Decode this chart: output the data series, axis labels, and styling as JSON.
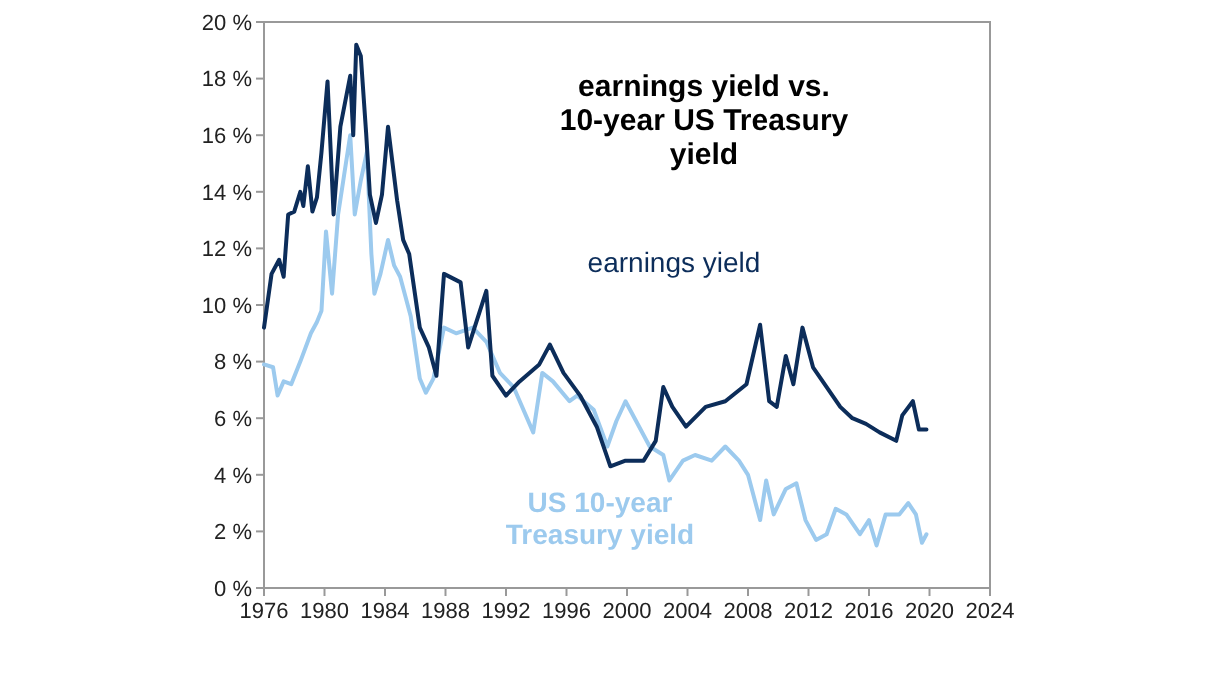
{
  "chart_data": {
    "type": "line",
    "title": "earnings yield vs. 10-year US Treasury yield",
    "xlim": [
      1976,
      2024
    ],
    "xticks": [
      1976,
      1980,
      1984,
      1988,
      1992,
      1996,
      2000,
      2004,
      2008,
      2012,
      2016,
      2020,
      2024
    ],
    "ylim": [
      0,
      20
    ],
    "yticks": [
      {
        "value": 0,
        "label": "0 %"
      },
      {
        "value": 2,
        "label": "2 %"
      },
      {
        "value": 4,
        "label": "4 %"
      },
      {
        "value": 6,
        "label": "6 %"
      },
      {
        "value": 8,
        "label": "8 %"
      },
      {
        "value": 10,
        "label": "10 %"
      },
      {
        "value": 12,
        "label": "12 %"
      },
      {
        "value": 14,
        "label": "14 %"
      },
      {
        "value": 16,
        "label": "16 %"
      },
      {
        "value": 18,
        "label": "18 %"
      },
      {
        "value": 20,
        "label": "20 %"
      }
    ],
    "grid": false,
    "marker": "none",
    "line_style": "solid",
    "series": [
      {
        "name": "US 10-year Treasury yield",
        "color": "#9ccaee",
        "x": [
          1976.0,
          1976.6,
          1976.9,
          1977.3,
          1977.8,
          1978.4,
          1979.1,
          1979.5,
          1979.8,
          1980.1,
          1980.5,
          1980.9,
          1981.3,
          1981.7,
          1982.0,
          1982.4,
          1982.8,
          1983.1,
          1983.3,
          1983.7,
          1984.2,
          1984.6,
          1985.0,
          1985.7,
          1986.3,
          1986.7,
          1987.2,
          1987.9,
          1988.7,
          1989.8,
          1990.7,
          1991.6,
          1992.5,
          1993.8,
          1994.4,
          1995.1,
          1996.2,
          1996.7,
          1997.8,
          1998.7,
          1999.3,
          1999.9,
          2000.6,
          2001.5,
          2002.4,
          2002.8,
          2003.7,
          2004.5,
          2005.6,
          2006.5,
          2007.4,
          2008.0,
          2008.8,
          2009.2,
          2009.7,
          2010.5,
          2011.2,
          2011.8,
          2012.5,
          2013.2,
          2013.8,
          2014.5,
          2015.4,
          2016.0,
          2016.5,
          2017.1,
          2018.0,
          2018.6,
          2019.1,
          2019.5,
          2019.8
        ],
        "values": [
          7.9,
          7.8,
          6.8,
          7.3,
          7.2,
          8.0,
          9.0,
          9.4,
          9.8,
          12.6,
          10.4,
          13.2,
          14.6,
          16.0,
          13.2,
          14.4,
          15.4,
          11.8,
          10.4,
          11.1,
          12.3,
          11.4,
          11.0,
          9.6,
          7.4,
          6.9,
          7.4,
          9.2,
          9.0,
          9.2,
          8.7,
          7.6,
          7.1,
          5.5,
          7.6,
          7.3,
          6.6,
          6.8,
          6.3,
          5.0,
          5.9,
          6.6,
          5.9,
          5.0,
          4.7,
          3.8,
          4.5,
          4.7,
          4.5,
          5.0,
          4.5,
          4.0,
          2.4,
          3.8,
          2.6,
          3.5,
          3.7,
          2.4,
          1.7,
          1.9,
          2.8,
          2.6,
          1.9,
          2.4,
          1.5,
          2.6,
          2.6,
          3.0,
          2.6,
          1.6,
          1.9
        ]
      },
      {
        "name": "earnings yield",
        "color": "#0c2d5a",
        "x": [
          1976.0,
          1976.5,
          1977.0,
          1977.3,
          1977.6,
          1978.0,
          1978.4,
          1978.6,
          1978.9,
          1979.2,
          1979.5,
          1979.8,
          1980.2,
          1980.6,
          1981.05,
          1981.7,
          1981.9,
          1982.1,
          1982.4,
          1982.75,
          1983.0,
          1983.4,
          1983.8,
          1984.2,
          1984.8,
          1985.2,
          1985.6,
          1986.3,
          1986.9,
          1987.4,
          1987.9,
          1989.0,
          1989.5,
          1990.7,
          1991.1,
          1992.0,
          1992.9,
          1994.2,
          1994.9,
          1995.8,
          1996.9,
          1998.0,
          1998.9,
          1999.9,
          2001.1,
          2001.9,
          2002.4,
          2003.0,
          2003.9,
          2005.2,
          2006.5,
          2007.9,
          2008.8,
          2009.4,
          2009.9,
          2010.5,
          2011.0,
          2011.6,
          2012.3,
          2013.2,
          2014.1,
          2014.9,
          2015.8,
          2016.7,
          2017.8,
          2018.2,
          2018.9,
          2019.3,
          2019.8
        ],
        "values": [
          9.2,
          11.1,
          11.6,
          11.0,
          13.2,
          13.3,
          14.0,
          13.5,
          14.9,
          13.3,
          13.8,
          15.4,
          17.9,
          13.2,
          16.3,
          18.1,
          16.0,
          19.2,
          18.8,
          16.1,
          13.9,
          12.9,
          13.9,
          16.3,
          13.7,
          12.3,
          11.8,
          9.2,
          8.5,
          7.5,
          11.1,
          10.8,
          8.5,
          10.5,
          7.5,
          6.8,
          7.3,
          7.9,
          8.6,
          7.6,
          6.8,
          5.7,
          4.3,
          4.5,
          4.5,
          5.2,
          7.1,
          6.4,
          5.7,
          6.4,
          6.6,
          7.2,
          9.3,
          6.6,
          6.4,
          8.2,
          7.2,
          9.2,
          7.8,
          7.1,
          6.4,
          6.0,
          5.8,
          5.5,
          5.2,
          6.1,
          6.6,
          5.6,
          5.6
        ]
      }
    ]
  }
}
